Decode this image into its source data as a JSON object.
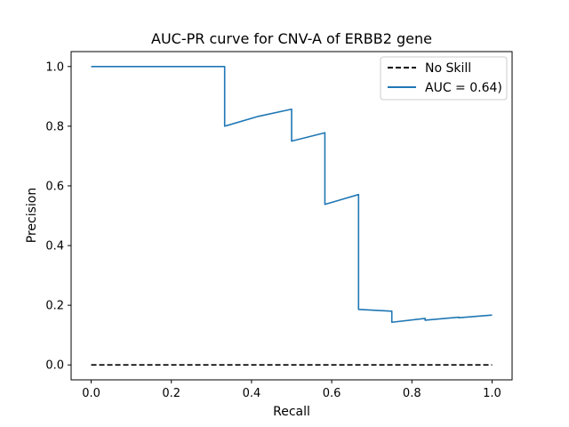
{
  "chart_data": {
    "type": "line",
    "title": "AUC-PR curve for CNV-A of ERBB2 gene",
    "xlabel": "Recall",
    "ylabel": "Precision",
    "xlim": [
      -0.05,
      1.05
    ],
    "ylim": [
      -0.05,
      1.05
    ],
    "xticks": [
      0.0,
      0.2,
      0.4,
      0.6,
      0.8,
      1.0
    ],
    "yticks": [
      0.0,
      0.2,
      0.4,
      0.6,
      0.8,
      1.0
    ],
    "xtick_labels": [
      "0.0",
      "0.2",
      "0.4",
      "0.6",
      "0.8",
      "1.0"
    ],
    "ytick_labels": [
      "0.0",
      "0.2",
      "0.4",
      "0.6",
      "0.8",
      "1.0"
    ],
    "grid": false,
    "legend_position": "upper-right",
    "series": [
      {
        "name": "No Skill",
        "style": "dashed",
        "color": "#000000",
        "x": [
          0.0,
          1.0
        ],
        "y": [
          0.0,
          0.0
        ]
      },
      {
        "name": "AUC = 0.64)",
        "style": "solid",
        "color": "#1f77b4",
        "x": [
          0.0,
          0.333,
          0.333,
          0.417,
          0.5,
          0.5,
          0.583,
          0.583,
          0.667,
          0.667,
          0.75,
          0.75,
          0.833,
          0.833,
          0.917,
          0.917,
          1.0
        ],
        "y": [
          1.0,
          1.0,
          0.8,
          0.833,
          0.857,
          0.75,
          0.778,
          0.538,
          0.571,
          0.186,
          0.18,
          0.143,
          0.156,
          0.15,
          0.16,
          0.158,
          0.167
        ]
      }
    ]
  }
}
